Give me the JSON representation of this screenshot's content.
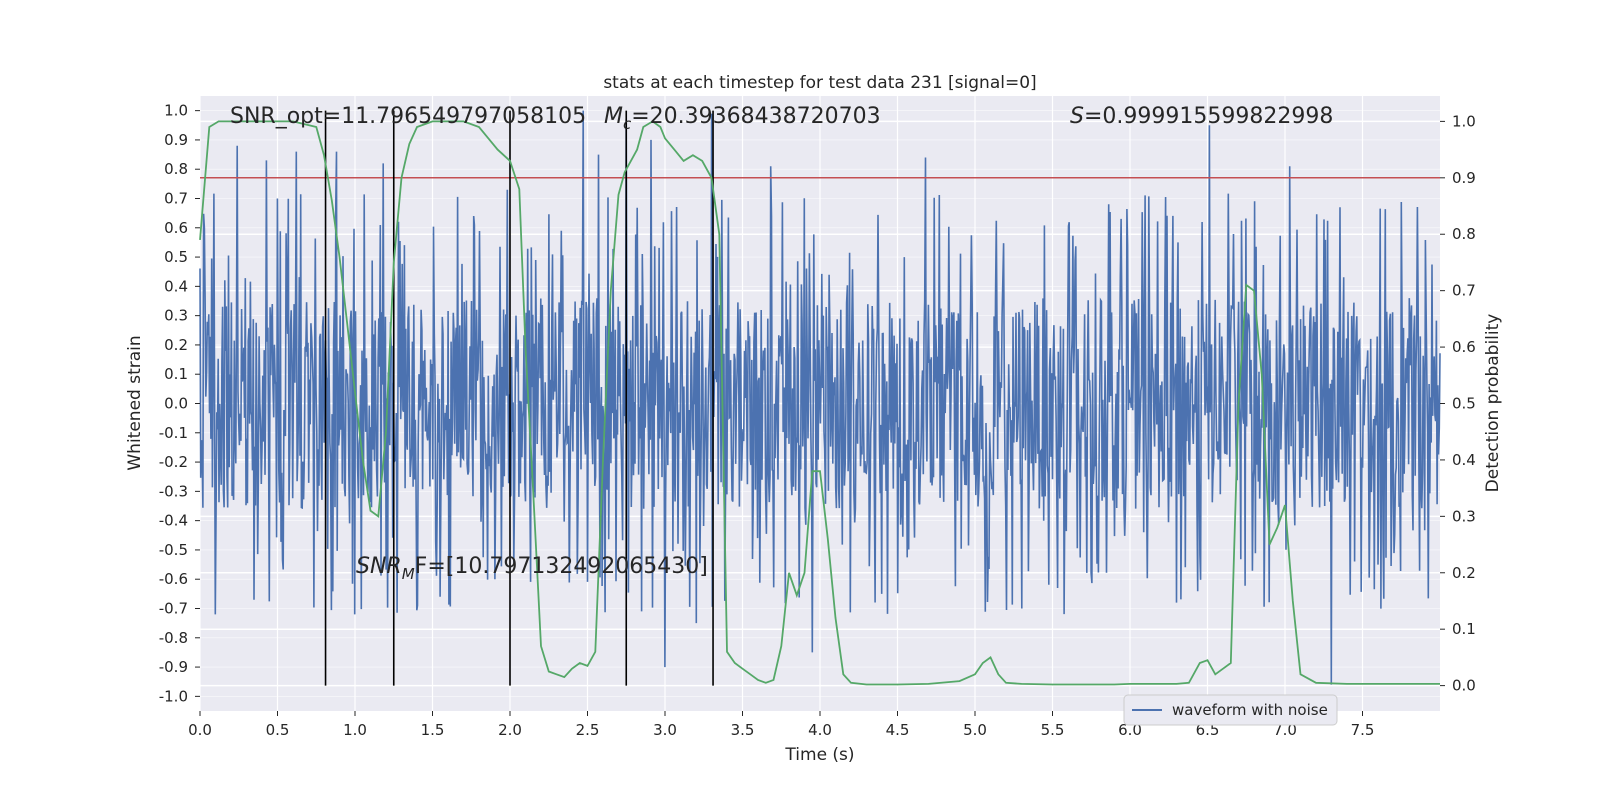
{
  "chart_data": {
    "type": "line",
    "title": "stats at each timestep for test data 231 [signal=0]",
    "xlabel": "Time (s)",
    "ylabel": "Whitened strain",
    "y2label": "Detection probability",
    "xlim": [
      0.0,
      8.0
    ],
    "ylim": [
      -1.05,
      1.05
    ],
    "y2lim": [
      -0.045,
      1.045
    ],
    "xticks": [
      "0.0",
      "0.5",
      "1.0",
      "1.5",
      "2.0",
      "2.5",
      "3.0",
      "3.5",
      "4.0",
      "4.5",
      "5.0",
      "5.5",
      "6.0",
      "6.5",
      "7.0",
      "7.5"
    ],
    "yticks": [
      "1.0",
      "0.9",
      "0.8",
      "0.7",
      "0.6",
      "0.5",
      "0.4",
      "0.3",
      "0.2",
      "0.1",
      "0.0",
      "-0.1",
      "-0.2",
      "-0.3",
      "-0.4",
      "-0.5",
      "-0.6",
      "-0.7",
      "-0.8",
      "-0.9",
      "-1.0"
    ],
    "y2ticks": [
      "1.0",
      "0.9",
      "0.8",
      "0.7",
      "0.6",
      "0.5",
      "0.4",
      "0.3",
      "0.2",
      "0.1",
      "0.0"
    ],
    "grid": true,
    "legend": {
      "position": "lower-right",
      "entries": [
        "waveform with noise"
      ]
    },
    "annotations": {
      "snr_opt_label": "SNR_opt=11.796549797058105",
      "mc_symbol": "M",
      "mc_sub": "c",
      "mc_value": "=20.39368438720703",
      "s_symbol": "S",
      "s_value": "=0.999915599822998",
      "snr_mf_symbol": "SNR",
      "snr_mf_sub": "M",
      "snr_mf_value": "F=[10.797132492065430]"
    },
    "threshold": {
      "y2": 0.9,
      "color": "#c44e52"
    },
    "vertical_lines_s": [
      0.81,
      1.25,
      2.0,
      2.75,
      3.31
    ],
    "series": [
      {
        "name": "waveform with noise",
        "axis": "left",
        "kind": "noise",
        "color": "#4c72b0",
        "n_samples": 1700,
        "base_envelope": 0.36,
        "spikes": [
          [
            0.24,
            0.88
          ],
          [
            0.43,
            0.83
          ],
          [
            0.5,
            0.7
          ],
          [
            0.62,
            0.86
          ],
          [
            0.88,
            0.86
          ],
          [
            1.0,
            0.79
          ],
          [
            1.18,
            0.82
          ],
          [
            1.98,
            0.73
          ],
          [
            2.47,
            1.0
          ],
          [
            2.57,
            0.85
          ],
          [
            2.75,
            0.97
          ],
          [
            2.91,
            0.9
          ],
          [
            3.3,
            0.99
          ],
          [
            3.68,
            0.87
          ],
          [
            3.68,
            0.81
          ],
          [
            4.68,
            0.84
          ],
          [
            5.3,
            0.8
          ],
          [
            6.51,
            0.95
          ],
          [
            7.03,
            0.81
          ],
          [
            0.1,
            -0.72
          ],
          [
            0.35,
            -0.67
          ],
          [
            1.0,
            -0.72
          ],
          [
            1.55,
            -0.66
          ],
          [
            1.9,
            -0.6
          ],
          [
            2.85,
            -0.71
          ],
          [
            3.0,
            -0.9
          ],
          [
            3.2,
            -0.75
          ],
          [
            3.95,
            -0.85
          ],
          [
            4.4,
            -0.65
          ],
          [
            5.3,
            -0.7
          ],
          [
            6.3,
            -0.68
          ],
          [
            7.3,
            -0.96
          ],
          [
            7.6,
            -0.55
          ]
        ]
      },
      {
        "name": "",
        "axis": "right",
        "kind": "probability",
        "color": "#55a868",
        "x": [
          0.0,
          0.06,
          0.12,
          0.25,
          0.5,
          0.6,
          0.75,
          0.8,
          0.85,
          0.9,
          0.95,
          1.0,
          1.05,
          1.1,
          1.15,
          1.2,
          1.25,
          1.3,
          1.35,
          1.4,
          1.5,
          1.6,
          1.7,
          1.8,
          1.86,
          1.92,
          2.0,
          2.06,
          2.1,
          2.15,
          2.2,
          2.25,
          2.3,
          2.35,
          2.4,
          2.45,
          2.5,
          2.55,
          2.6,
          2.65,
          2.7,
          2.74,
          2.78,
          2.82,
          2.86,
          2.92,
          2.97,
          3.0,
          3.06,
          3.12,
          3.18,
          3.24,
          3.3,
          3.35,
          3.4,
          3.45,
          3.5,
          3.55,
          3.6,
          3.65,
          3.7,
          3.75,
          3.8,
          3.85,
          3.9,
          3.95,
          4.0,
          4.05,
          4.1,
          4.15,
          4.2,
          4.3,
          4.5,
          4.7,
          4.9,
          5.0,
          5.05,
          5.1,
          5.15,
          5.2,
          5.3,
          5.5,
          5.7,
          5.9,
          6.0,
          6.1,
          6.2,
          6.3,
          6.38,
          6.45,
          6.5,
          6.55,
          6.6,
          6.65,
          6.7,
          6.75,
          6.8,
          6.85,
          6.9,
          6.95,
          7.0,
          7.05,
          7.1,
          7.2,
          7.4,
          7.6,
          7.8,
          8.0
        ],
        "values": [
          0.79,
          0.99,
          1.0,
          1.0,
          1.0,
          1.0,
          0.99,
          0.94,
          0.86,
          0.76,
          0.64,
          0.52,
          0.4,
          0.31,
          0.3,
          0.45,
          0.75,
          0.9,
          0.96,
          0.99,
          1.0,
          1.0,
          1.0,
          0.99,
          0.97,
          0.95,
          0.93,
          0.88,
          0.6,
          0.34,
          0.07,
          0.025,
          0.02,
          0.015,
          0.03,
          0.04,
          0.035,
          0.06,
          0.4,
          0.7,
          0.87,
          0.91,
          0.93,
          0.95,
          0.99,
          1.0,
          0.99,
          0.97,
          0.95,
          0.93,
          0.94,
          0.93,
          0.9,
          0.8,
          0.06,
          0.04,
          0.03,
          0.02,
          0.01,
          0.005,
          0.01,
          0.07,
          0.2,
          0.16,
          0.2,
          0.38,
          0.38,
          0.26,
          0.12,
          0.02,
          0.005,
          0.002,
          0.002,
          0.003,
          0.008,
          0.02,
          0.04,
          0.05,
          0.02,
          0.005,
          0.003,
          0.002,
          0.002,
          0.002,
          0.003,
          0.003,
          0.003,
          0.003,
          0.005,
          0.04,
          0.045,
          0.02,
          0.03,
          0.04,
          0.5,
          0.71,
          0.7,
          0.55,
          0.25,
          0.28,
          0.32,
          0.15,
          0.02,
          0.005,
          0.003,
          0.003,
          0.003,
          0.003
        ]
      }
    ]
  }
}
